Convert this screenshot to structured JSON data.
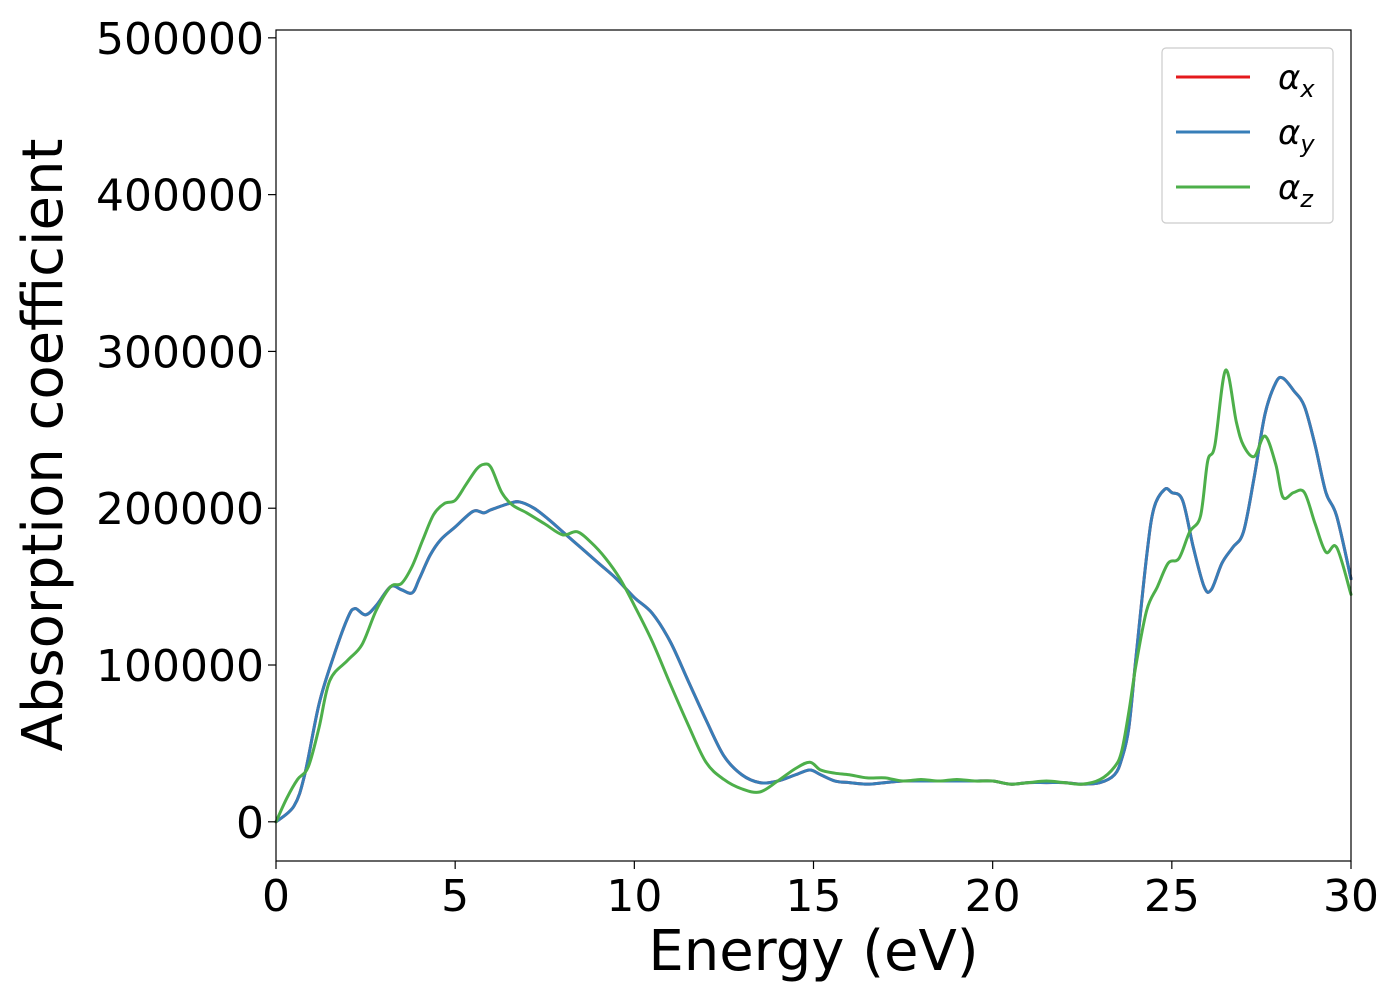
{
  "chart_data": {
    "type": "line",
    "xlabel": "Energy (eV)",
    "ylabel": "Absorption coefficient",
    "xlim": [
      0,
      30
    ],
    "ylim": [
      -25000,
      505000
    ],
    "x_ticks": [
      0,
      5,
      10,
      15,
      20,
      25,
      30
    ],
    "x_tick_labels": [
      "0",
      "5",
      "10",
      "15",
      "20",
      "25",
      "30"
    ],
    "y_ticks": [
      0,
      100000,
      200000,
      300000,
      400000,
      500000
    ],
    "y_tick_labels": [
      "0",
      "100000",
      "200000",
      "300000",
      "400000",
      "500000"
    ],
    "legend_position": "top-right",
    "grid": false,
    "series": [
      {
        "name": "α_x",
        "label_base": "α",
        "label_sub": "x",
        "color": "#e41a1c",
        "x": [
          0,
          0.5,
          0.8,
          1.2,
          1.6,
          2.0,
          2.2,
          2.5,
          2.8,
          3.2,
          3.5,
          3.8,
          4.0,
          4.3,
          4.6,
          5.0,
          5.5,
          5.8,
          6.0,
          6.5,
          6.8,
          7.2,
          7.6,
          8.0,
          8.5,
          9.0,
          9.5,
          10.0,
          10.5,
          11.0,
          11.5,
          12.0,
          12.5,
          13.0,
          13.5,
          14.0,
          14.5,
          14.9,
          15.2,
          15.6,
          16.0,
          16.5,
          17.0,
          17.5,
          18.0,
          18.5,
          19.0,
          19.5,
          20.0,
          20.5,
          21.0,
          21.5,
          22.0,
          22.5,
          23.0,
          23.4,
          23.6,
          23.8,
          24.0,
          24.3,
          24.5,
          24.8,
          25.0,
          25.3,
          25.6,
          25.9,
          26.1,
          26.4,
          26.7,
          27.0,
          27.3,
          27.6,
          27.9,
          28.1,
          28.4,
          28.7,
          29.0,
          29.3,
          29.6,
          30.0
        ],
        "y": [
          0,
          10000,
          30000,
          75000,
          105000,
          130000,
          136000,
          132000,
          138000,
          150000,
          148000,
          146000,
          155000,
          170000,
          180000,
          188000,
          198000,
          197000,
          199000,
          203000,
          204000,
          200000,
          193000,
          185000,
          175000,
          165000,
          155000,
          143000,
          133000,
          115000,
          90000,
          65000,
          42000,
          30000,
          25000,
          26000,
          30000,
          33000,
          30000,
          26000,
          25000,
          24000,
          25000,
          26000,
          26000,
          26000,
          26000,
          26000,
          26000,
          24000,
          25000,
          25000,
          25000,
          24000,
          25000,
          30000,
          40000,
          60000,
          105000,
          170000,
          200000,
          212000,
          210000,
          205000,
          175000,
          150000,
          148000,
          165000,
          175000,
          185000,
          220000,
          260000,
          280000,
          283000,
          275000,
          265000,
          240000,
          210000,
          195000,
          155000
        ]
      },
      {
        "name": "α_y",
        "label_base": "α",
        "label_sub": "y",
        "color": "#377eb8",
        "x": [
          0,
          0.5,
          0.8,
          1.2,
          1.6,
          2.0,
          2.2,
          2.5,
          2.8,
          3.2,
          3.5,
          3.8,
          4.0,
          4.3,
          4.6,
          5.0,
          5.5,
          5.8,
          6.0,
          6.5,
          6.8,
          7.2,
          7.6,
          8.0,
          8.5,
          9.0,
          9.5,
          10.0,
          10.5,
          11.0,
          11.5,
          12.0,
          12.5,
          13.0,
          13.5,
          14.0,
          14.5,
          14.9,
          15.2,
          15.6,
          16.0,
          16.5,
          17.0,
          17.5,
          18.0,
          18.5,
          19.0,
          19.5,
          20.0,
          20.5,
          21.0,
          21.5,
          22.0,
          22.5,
          23.0,
          23.4,
          23.6,
          23.8,
          24.0,
          24.3,
          24.5,
          24.8,
          25.0,
          25.3,
          25.6,
          25.9,
          26.1,
          26.4,
          26.7,
          27.0,
          27.3,
          27.6,
          27.9,
          28.1,
          28.4,
          28.7,
          29.0,
          29.3,
          29.6,
          30.0
        ],
        "y": [
          0,
          10000,
          30000,
          75000,
          105000,
          130000,
          136000,
          132000,
          138000,
          150000,
          148000,
          146000,
          155000,
          170000,
          180000,
          188000,
          198000,
          197000,
          199000,
          203000,
          204000,
          200000,
          193000,
          185000,
          175000,
          165000,
          155000,
          143000,
          133000,
          115000,
          90000,
          65000,
          42000,
          30000,
          25000,
          26000,
          30000,
          33000,
          30000,
          26000,
          25000,
          24000,
          25000,
          26000,
          26000,
          26000,
          26000,
          26000,
          26000,
          24000,
          25000,
          25000,
          25000,
          24000,
          25000,
          30000,
          40000,
          60000,
          105000,
          170000,
          200000,
          212000,
          210000,
          205000,
          175000,
          150000,
          148000,
          165000,
          175000,
          185000,
          220000,
          260000,
          280000,
          283000,
          275000,
          265000,
          240000,
          210000,
          195000,
          155000
        ]
      },
      {
        "name": "α_z",
        "label_base": "α",
        "label_sub": "z",
        "color": "#4daf4a",
        "x": [
          0,
          0.3,
          0.6,
          0.9,
          1.2,
          1.5,
          2.0,
          2.4,
          2.8,
          3.2,
          3.5,
          3.8,
          4.1,
          4.4,
          4.7,
          5.0,
          5.3,
          5.6,
          5.8,
          6.0,
          6.3,
          6.6,
          7.0,
          7.5,
          8.0,
          8.4,
          8.8,
          9.2,
          9.6,
          10.0,
          10.5,
          11.0,
          11.5,
          12.0,
          12.5,
          13.0,
          13.5,
          14.0,
          14.5,
          14.9,
          15.2,
          15.6,
          16.0,
          16.5,
          17.0,
          17.5,
          18.0,
          18.5,
          19.0,
          19.5,
          20.0,
          20.5,
          21.0,
          21.5,
          22.0,
          22.5,
          23.0,
          23.4,
          23.6,
          23.8,
          24.0,
          24.3,
          24.6,
          24.9,
          25.2,
          25.5,
          25.8,
          26.0,
          26.2,
          26.5,
          26.8,
          27.0,
          27.3,
          27.6,
          27.9,
          28.1,
          28.4,
          28.7,
          29.0,
          29.3,
          29.6,
          30.0
        ],
        "y": [
          0,
          15000,
          27000,
          35000,
          60000,
          90000,
          103000,
          113000,
          135000,
          150000,
          152000,
          163000,
          180000,
          196000,
          203000,
          205000,
          215000,
          225000,
          228000,
          226000,
          210000,
          202000,
          197000,
          190000,
          183000,
          185000,
          178000,
          168000,
          155000,
          138000,
          115000,
          88000,
          62000,
          38000,
          27000,
          21000,
          19000,
          26000,
          34000,
          38000,
          33000,
          31000,
          30000,
          28000,
          28000,
          26000,
          27000,
          26000,
          27000,
          26000,
          26000,
          24000,
          25000,
          26000,
          25000,
          24000,
          27000,
          35000,
          45000,
          70000,
          100000,
          135000,
          150000,
          165000,
          168000,
          185000,
          195000,
          230000,
          240000,
          288000,
          255000,
          240000,
          233000,
          246000,
          228000,
          207000,
          210000,
          210000,
          190000,
          172000,
          175000,
          145000
        ]
      }
    ]
  }
}
